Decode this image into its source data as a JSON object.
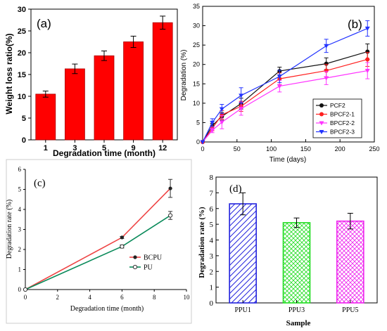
{
  "chart_data": [
    {
      "panel": "(a)",
      "type": "bar",
      "categories": [
        "1",
        "3",
        "5",
        "9",
        "12"
      ],
      "values": [
        10.5,
        16.3,
        19.3,
        22.5,
        26.9
      ],
      "errors": [
        0.7,
        1.1,
        1.1,
        1.3,
        1.5
      ],
      "xlabel": "Degradation time (month)",
      "ylabel": "Weight loss ratio(%)",
      "ylim": [
        0,
        30
      ],
      "yticks": [
        "0",
        "5",
        "10",
        "15",
        "20",
        "25",
        "30"
      ],
      "color": "#ff0000",
      "grid": false
    },
    {
      "panel": "(b)",
      "type": "line",
      "xlabel": "Time (days)",
      "ylabel": "Degradation (%)",
      "xlim": [
        0,
        250
      ],
      "ylim": [
        0,
        35
      ],
      "xticks": [
        "0",
        "50",
        "100",
        "150",
        "200",
        "250"
      ],
      "yticks": [
        "0",
        "5",
        "10",
        "15",
        "20",
        "25",
        "30",
        "35"
      ],
      "legend_position": "bottom-right",
      "x": [
        0,
        14,
        28,
        56,
        112,
        180,
        240
      ],
      "series": [
        {
          "name": "PCF2",
          "color": "#111111",
          "marker": "circle",
          "values": [
            0,
            4.2,
            6.6,
            9.9,
            18.3,
            20.2,
            23.3
          ],
          "errors": [
            0,
            0.6,
            1.0,
            1.4,
            1.0,
            1.5,
            2.0
          ]
        },
        {
          "name": "BPCF2-1",
          "color": "#ff1f1f",
          "marker": "circle",
          "values": [
            0,
            3.5,
            7.0,
            9.2,
            16.3,
            18.4,
            21.3
          ],
          "errors": [
            0,
            0.6,
            1.1,
            1.3,
            1.5,
            1.6,
            1.8
          ]
        },
        {
          "name": "BPCF2-2",
          "color": "#ff33ff",
          "marker": "triangle-down",
          "values": [
            0,
            3.0,
            5.1,
            8.6,
            14.4,
            16.5,
            18.4
          ],
          "errors": [
            0,
            0.6,
            1.7,
            1.7,
            1.5,
            1.7,
            2.1
          ]
        },
        {
          "name": "BPCF2-3",
          "color": "#2233ff",
          "marker": "triangle-down",
          "values": [
            0,
            5.0,
            8.5,
            12.0,
            16.9,
            24.8,
            29.3
          ],
          "errors": [
            0,
            1.0,
            1.2,
            2.0,
            1.6,
            1.7,
            2.0
          ]
        }
      ]
    },
    {
      "panel": "(c)",
      "type": "line",
      "xlabel": "Degradation time (month)",
      "ylabel": "Degradation rate (%)",
      "xlim": [
        0,
        10
      ],
      "ylim": [
        0,
        6
      ],
      "xticks": [
        "0",
        "2",
        "4",
        "6",
        "8",
        "10"
      ],
      "yticks": [
        "0",
        "1",
        "2",
        "3",
        "4",
        "5",
        "6"
      ],
      "legend_position": "bottom-right",
      "x": [
        0,
        6,
        9
      ],
      "series": [
        {
          "name": "BCPU",
          "color": "#ee4444",
          "marker": "filled-circle",
          "values": [
            0,
            2.6,
            5.05
          ],
          "errors": [
            0,
            0.05,
            0.45
          ]
        },
        {
          "name": "PU",
          "color": "#0a8a5a",
          "marker": "open-circle",
          "values": [
            0,
            2.15,
            3.7
          ],
          "errors": [
            0,
            0.08,
            0.2
          ]
        }
      ]
    },
    {
      "panel": "(d)",
      "type": "bar",
      "categories": [
        "PPU1",
        "PPU3",
        "PPU5"
      ],
      "values": [
        6.3,
        5.1,
        5.2
      ],
      "errors": [
        0.7,
        0.3,
        0.5
      ],
      "xlabel": "Sample",
      "ylabel": "Degradation rate (%)",
      "ylim": [
        0,
        8
      ],
      "yticks": [
        "0",
        "1",
        "2",
        "3",
        "4",
        "5",
        "6",
        "7",
        "8"
      ],
      "colors": [
        "#2222dd",
        "#22dd22",
        "#ee22ee"
      ],
      "patterns": [
        "diagonal-hatch",
        "cross-hatch",
        "cross-hatch"
      ]
    }
  ]
}
